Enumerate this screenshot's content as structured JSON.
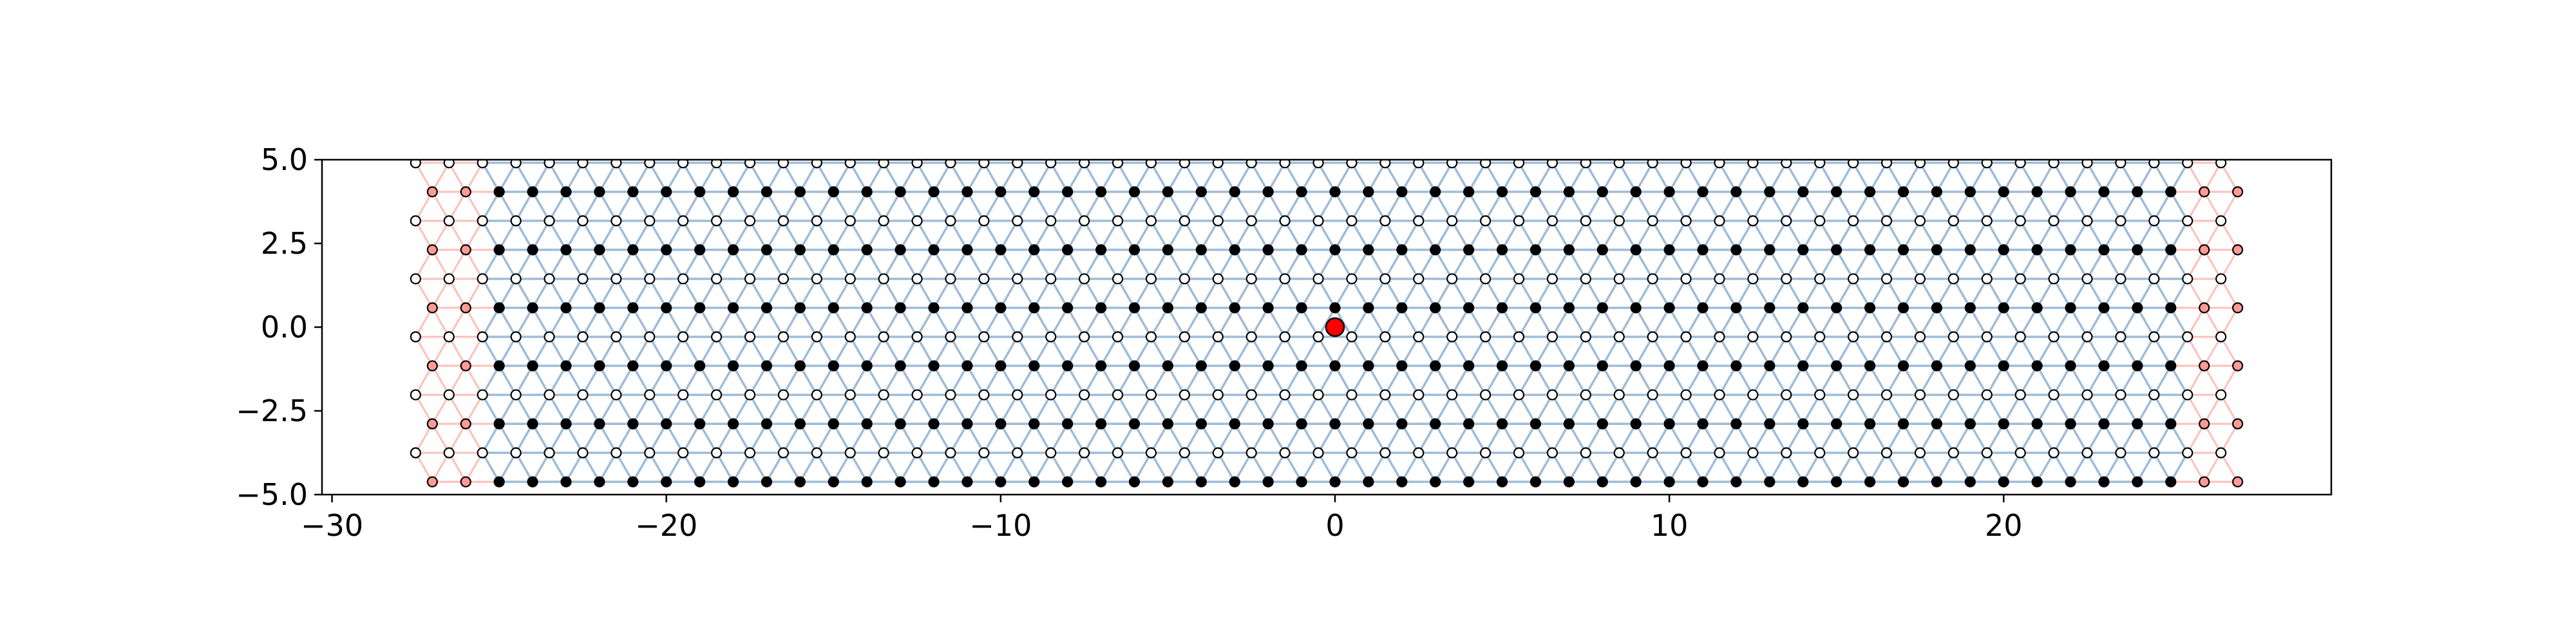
{
  "chart_data": {
    "type": "scatter",
    "title": "",
    "xlabel": "",
    "ylabel": "",
    "xlim": [
      -30.3,
      29.8
    ],
    "ylim": [
      -5.0,
      5.0
    ],
    "xticks": [
      -30,
      -20,
      -10,
      0,
      10,
      20
    ],
    "xtick_labels": [
      "−30",
      "−20",
      "−10",
      "0",
      "10",
      "20"
    ],
    "yticks": [
      5.0,
      2.5,
      0.0,
      -2.5,
      -5.0
    ],
    "ytick_labels": [
      "5.0",
      "2.5",
      "0.0",
      "−2.5",
      "−5.0"
    ],
    "grid": false,
    "lattice": {
      "kind": "honeycomb",
      "a": 1.0,
      "rows_y_min": -4.6188,
      "rows_y_max": 4.6188,
      "scattering_region_x": [
        -25.5,
        25.5
      ],
      "lead_left_x": [
        -27.5,
        -25.5
      ],
      "lead_right_x": [
        25.5,
        27.0
      ]
    },
    "series": [
      {
        "role": "sublattice-A sites",
        "marker": "filled circle",
        "color": "#000000"
      },
      {
        "role": "sublattice-B sites",
        "marker": "open circle",
        "color": "#ffffff"
      },
      {
        "role": "hoppings",
        "marker": "line",
        "color": "#7ea6cc"
      },
      {
        "role": "lead sites",
        "marker": "circle",
        "color": "#ff8a80"
      },
      {
        "role": "highlighted site",
        "marker": "large circle",
        "color": "#ff0000",
        "x": 0.0,
        "y": 0.0
      }
    ]
  }
}
